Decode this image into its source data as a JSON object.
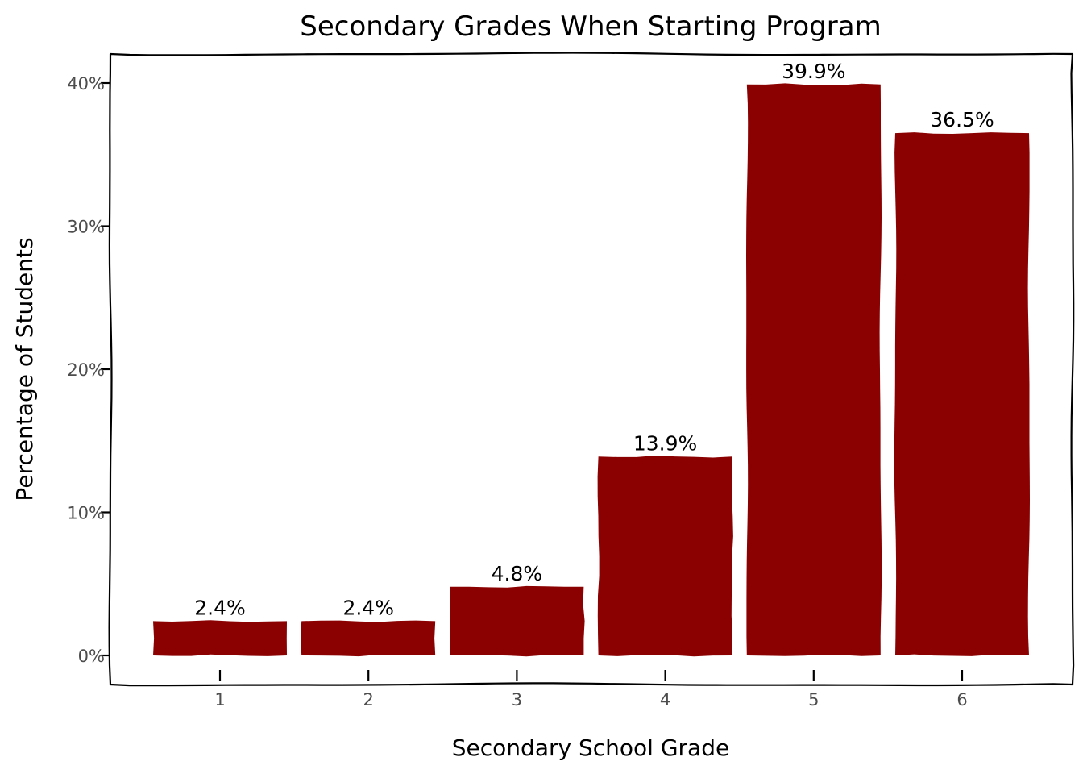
{
  "chart_data": {
    "type": "bar",
    "title": "Secondary Grades When Starting Program",
    "xlabel": "Secondary School Grade",
    "ylabel": "Percentage of Students",
    "categories": [
      "1",
      "2",
      "3",
      "4",
      "5",
      "6"
    ],
    "values": [
      2.4,
      2.4,
      4.8,
      13.9,
      39.9,
      36.5
    ],
    "data_labels": [
      "2.4%",
      "2.4%",
      "4.8%",
      "13.9%",
      "39.9%",
      "36.5%"
    ],
    "yticks": [
      0,
      10,
      20,
      30,
      40
    ],
    "ytick_labels": [
      "0%",
      "10%",
      "20%",
      "30%",
      "40%"
    ],
    "ylim": [
      -2,
      42
    ],
    "bar_color": "#8b0000",
    "grid": false,
    "legend": "none"
  }
}
